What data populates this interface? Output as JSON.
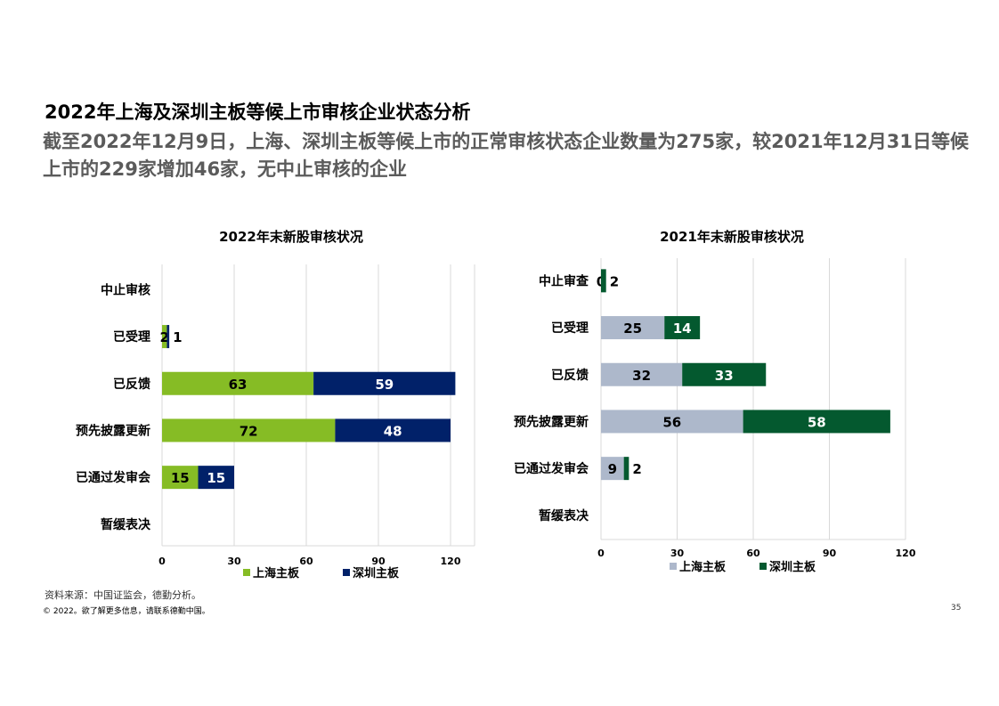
{
  "page": {
    "title": "2022年上海及深圳主板等候上市审核企业状态分析",
    "subtitle": "截至2022年12月9日，上海、深圳主板等候上市的正常审核状态企业数量为275家，较2021年12月31日等候上市的229家增加46家，无中止审核的企业",
    "source": "资料来源：中国证监会，德勤分析。",
    "copyright": "© 2022。欲了解更多信息，请联系德勤中国。",
    "page_number": "35"
  },
  "colors": {
    "shanghai_2022": "#86bc25",
    "shenzhen_2022": "#012169",
    "shanghai_2021": "#adb8cb",
    "shenzhen_2021": "#04592f"
  },
  "chart_data": [
    {
      "type": "bar",
      "orientation": "horizontal",
      "stacked": true,
      "title": "2022年末新股审核状况",
      "categories": [
        "中止审核",
        "已受理",
        "已反馈",
        "预先披露更新",
        "已通过发审会",
        "暂缓表决"
      ],
      "series": [
        {
          "name": "上海主板",
          "values": [
            null,
            2,
            63,
            72,
            15,
            null
          ]
        },
        {
          "name": "深圳主板",
          "values": [
            null,
            1,
            59,
            48,
            15,
            null
          ]
        }
      ],
      "xlim": [
        0,
        130
      ],
      "xticks": [
        0,
        30,
        60,
        90,
        120
      ],
      "grid": true,
      "legend": "bottom"
    },
    {
      "type": "bar",
      "orientation": "horizontal",
      "stacked": true,
      "title": "2021年末新股审核状况",
      "categories": [
        "中止审查",
        "已受理",
        "已反馈",
        "预先披露更新",
        "已通过发审会",
        "暂缓表决"
      ],
      "series": [
        {
          "name": "上海主板",
          "values": [
            0,
            25,
            32,
            56,
            9,
            null
          ]
        },
        {
          "name": "深圳主板",
          "values": [
            2,
            14,
            33,
            58,
            2,
            null
          ]
        }
      ],
      "xlim": [
        0,
        120
      ],
      "xticks": [
        0,
        30,
        60,
        90,
        120
      ],
      "grid": true,
      "legend": "bottom"
    }
  ]
}
